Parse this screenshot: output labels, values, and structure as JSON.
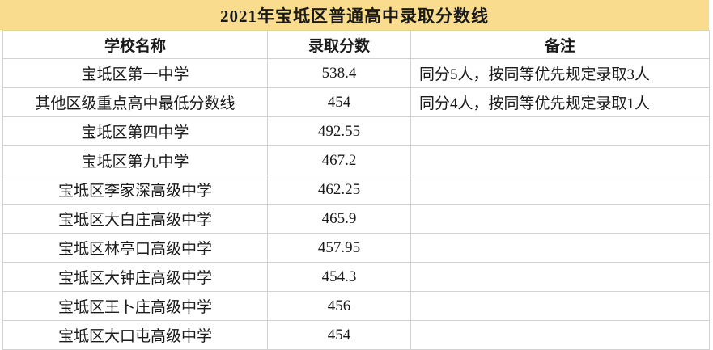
{
  "title": "2021年宝坻区普通高中录取分数线",
  "colors": {
    "title_background": "#F9DC8E",
    "grid_border": "#D2D2D2",
    "text": "#1A1A1A",
    "row_background": "#FFFFFF"
  },
  "table": {
    "columns": [
      {
        "key": "school",
        "label": "学校名称"
      },
      {
        "key": "score",
        "label": "录取分数"
      },
      {
        "key": "remark",
        "label": "备注"
      }
    ],
    "rows": [
      {
        "school": "宝坻区第一中学",
        "score": "538.4",
        "remark": "同分5人，按同等优先规定录取3人"
      },
      {
        "school": "其他区级重点高中最低分数线",
        "score": "454",
        "remark": "同分4人，按同等优先规定录取1人"
      },
      {
        "school": "宝坻区第四中学",
        "score": "492.55",
        "remark": ""
      },
      {
        "school": "宝坻区第九中学",
        "score": "467.2",
        "remark": ""
      },
      {
        "school": "宝坻区李家深高级中学",
        "score": "462.25",
        "remark": ""
      },
      {
        "school": "宝坻区大白庄高级中学",
        "score": "465.9",
        "remark": ""
      },
      {
        "school": "宝坻区林亭口高级中学",
        "score": "457.95",
        "remark": ""
      },
      {
        "school": "宝坻区大钟庄高级中学",
        "score": "454.3",
        "remark": ""
      },
      {
        "school": "宝坻区王卜庄高级中学",
        "score": "456",
        "remark": ""
      },
      {
        "school": "宝坻区大口屯高级中学",
        "score": "454",
        "remark": ""
      }
    ]
  }
}
